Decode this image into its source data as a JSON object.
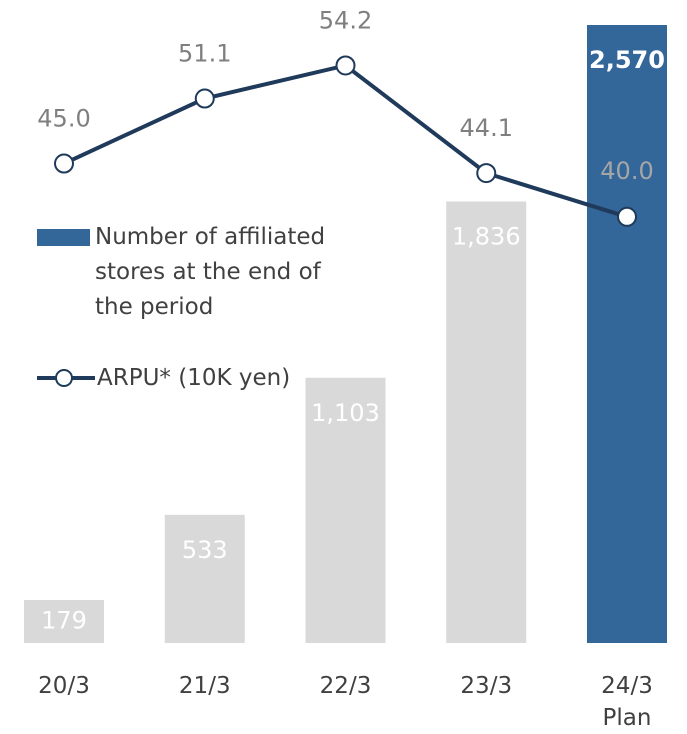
{
  "chart_data": {
    "type": "bar_line",
    "categories": [
      "20/3",
      "21/3",
      "22/3",
      "23/3",
      "24/3\nPlan"
    ],
    "series": [
      {
        "name": "Number of affiliated stores at the end of the period",
        "type": "bar",
        "color": "#d9d9d9",
        "colors": [
          "#d9d9d9",
          "#d9d9d9",
          "#d9d9d9",
          "#d9d9d9",
          "#336699"
        ],
        "values": [
          179,
          533,
          1103,
          1836,
          2570
        ],
        "value_labels": [
          "179",
          "533",
          "1,103",
          "1,836",
          "2,570"
        ]
      },
      {
        "name": "ARPU* (10K yen)",
        "type": "line",
        "axis": "y2",
        "color": "#1f3a5a",
        "values": [
          45.0,
          51.1,
          54.2,
          44.1,
          40.0
        ],
        "value_labels": [
          "45.0",
          "51.1",
          "54.2",
          "44.1",
          "40.0"
        ]
      }
    ],
    "ylim": [
      0,
      2570
    ],
    "y2lim": [
      0,
      58
    ],
    "legend": "left"
  }
}
